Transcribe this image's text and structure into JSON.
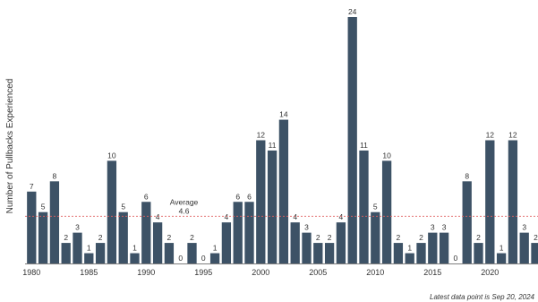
{
  "chart_data": {
    "type": "bar",
    "ylabel": "Number of Pullbacks Experienced",
    "x": [
      1980,
      1981,
      1982,
      1983,
      1984,
      1985,
      1986,
      1987,
      1988,
      1989,
      1990,
      1991,
      1992,
      1993,
      1994,
      1995,
      1996,
      1997,
      1998,
      1999,
      2000,
      2001,
      2002,
      2003,
      2004,
      2005,
      2006,
      2007,
      2008,
      2009,
      2010,
      2011,
      2012,
      2013,
      2014,
      2015,
      2016,
      2017,
      2018,
      2019,
      2020,
      2021,
      2022,
      2023,
      2024
    ],
    "values": [
      7,
      5,
      8,
      2,
      3,
      1,
      2,
      10,
      5,
      1,
      6,
      4,
      2,
      0,
      2,
      0,
      1,
      4,
      6,
      6,
      12,
      11,
      14,
      4,
      3,
      2,
      2,
      4,
      24,
      11,
      5,
      10,
      2,
      1,
      2,
      3,
      3,
      0,
      8,
      2,
      12,
      1,
      12,
      3,
      2
    ],
    "xticks": [
      1980,
      1985,
      1990,
      1995,
      2000,
      2005,
      2010,
      2015,
      2020
    ],
    "average": 4.6,
    "average_label": "Average",
    "average_value_label": "4.6",
    "bar_color": "#3d5266",
    "average_line_color": "#e06060",
    "grid": false
  },
  "footnote": "Latest data point is Sep 20, 2024"
}
